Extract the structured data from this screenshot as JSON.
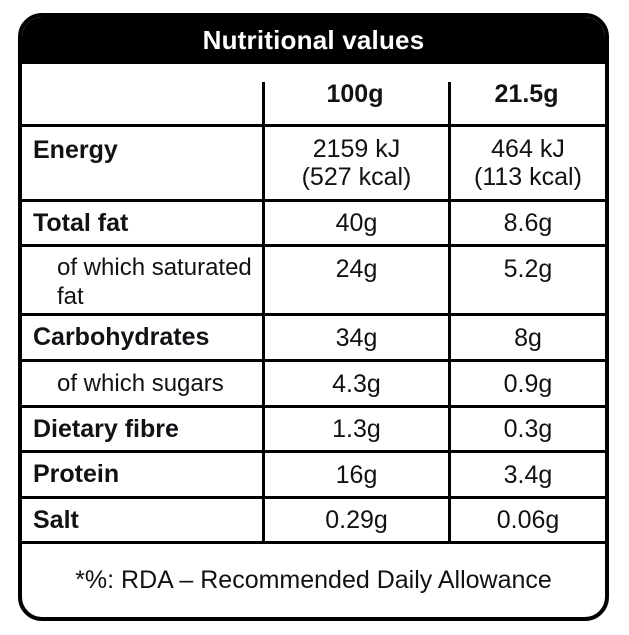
{
  "label": {
    "title": "Nutritional values",
    "columns": {
      "per_100g": "100g",
      "per_serving": "21.5g"
    },
    "rows": [
      {
        "label": "Energy",
        "per_100g_line1": "2159 kJ",
        "per_100g_line2": "(527 kcal)",
        "per_serving_line1": "464 kJ",
        "per_serving_line2": "(113 kcal)"
      },
      {
        "label": "Total fat",
        "per_100g": "40g",
        "per_serving": "8.6g"
      },
      {
        "label": "of which saturated fat",
        "per_100g": "24g",
        "per_serving": "5.2g"
      },
      {
        "label": "Carbohydrates",
        "per_100g": "34g",
        "per_serving": "8g"
      },
      {
        "label": "of which sugars",
        "per_100g": "4.3g",
        "per_serving": "0.9g"
      },
      {
        "label": "Dietary fibre",
        "per_100g": "1.3g",
        "per_serving": "0.3g"
      },
      {
        "label": "Protein",
        "per_100g": "16g",
        "per_serving": "3.4g"
      },
      {
        "label": "Salt",
        "per_100g": "0.29g",
        "per_serving": "0.06g"
      }
    ],
    "footnote": "*%: RDA – Recommended Daily Allowance",
    "colors": {
      "header_bg": "#000000",
      "header_text": "#ffffff",
      "border": "#000000",
      "text": "#121216",
      "background": "#ffffff"
    }
  }
}
